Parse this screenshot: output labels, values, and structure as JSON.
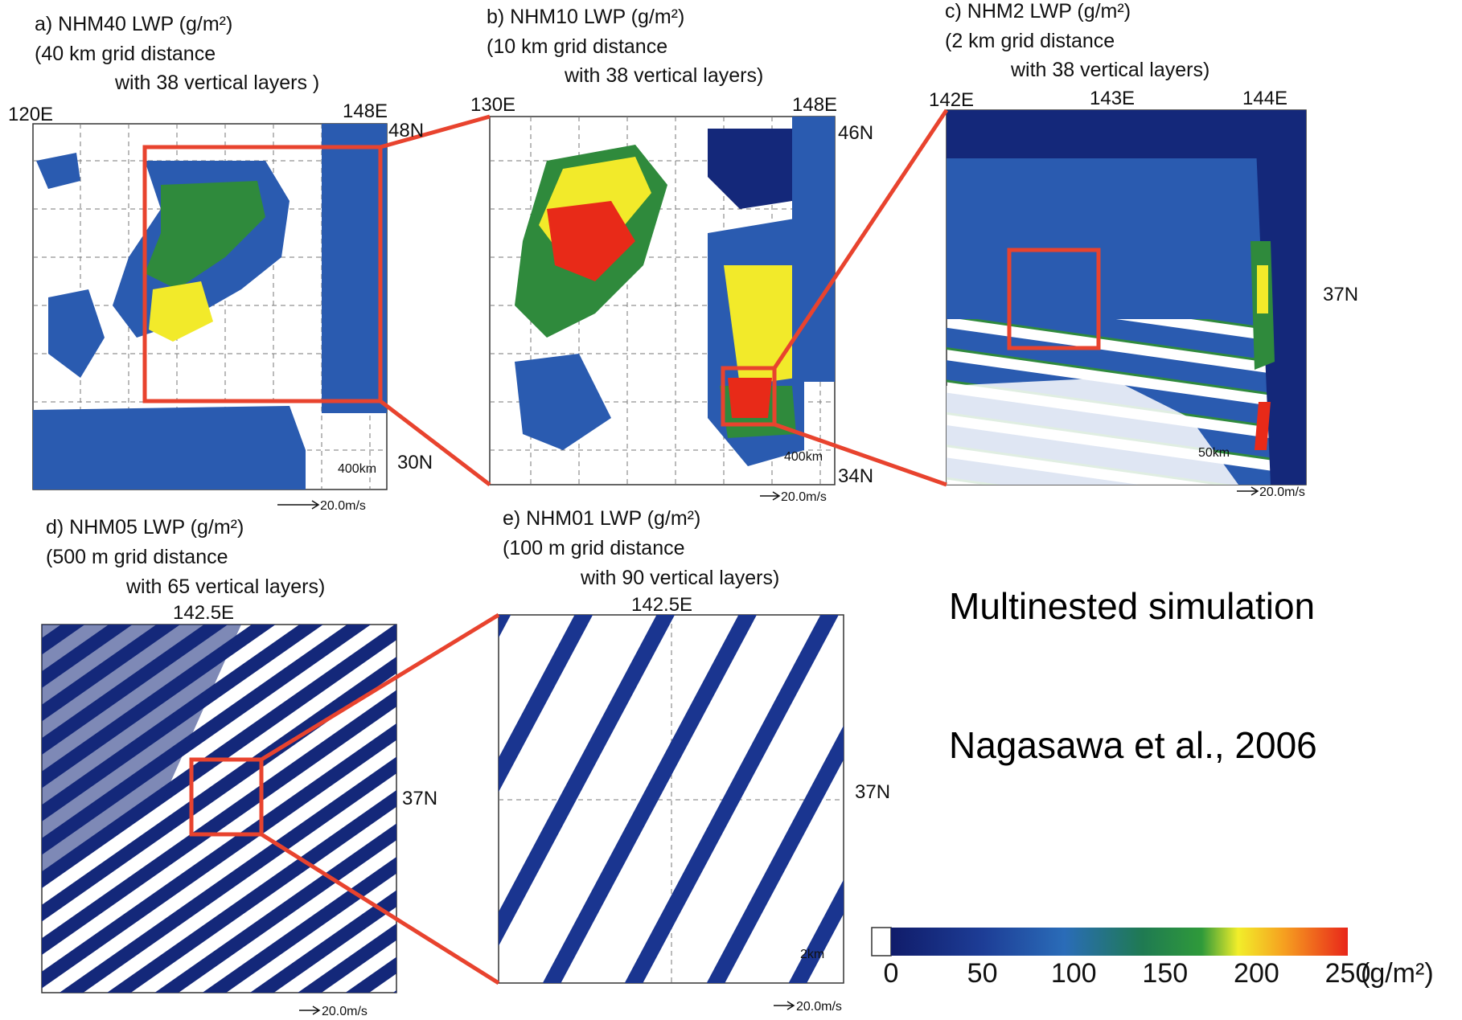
{
  "panels": [
    {
      "title": "a) NHM40 LWP (g/m²)",
      "line2": "(40 km grid distance",
      "line3": "with 38 vertical layers )",
      "labels": [
        "120E",
        "148E",
        "48N",
        "30N",
        "400km",
        "20.0m/s"
      ]
    },
    {
      "title": "b) NHM10 LWP (g/m²)",
      "line2": "(10 km grid distance",
      "line3": "with 38 vertical layers)",
      "labels": [
        "130E",
        "148E",
        "46N",
        "34N",
        "400km",
        "20.0m/s"
      ]
    },
    {
      "title": "c) NHM2 LWP (g/m²)",
      "line2": "(2 km grid distance",
      "line3": "with 38 vertical layers)",
      "labels": [
        "142E",
        "143E",
        "144E",
        "37N",
        "50km",
        "20.0m/s"
      ]
    },
    {
      "title": "d) NHM05 LWP (g/m²)",
      "line2": "(500 m grid distance",
      "line3": "with 65 vertical layers)",
      "labels": [
        "142.5E",
        "37N",
        "20.0m/s"
      ]
    },
    {
      "title": "e) NHM01 LWP (g/m²)",
      "line2": "(100 m grid distance",
      "line3": "with 90 vertical layers)",
      "labels": [
        "142.5E",
        "37N",
        "2km",
        "20.0m/s"
      ]
    }
  ],
  "caption": "Multinested simulation",
  "citation": "Nagasawa et al., 2006",
  "colorbar": {
    "ticks": [
      0,
      50,
      100,
      150,
      200,
      250
    ],
    "unit": "(g/m²)"
  }
}
